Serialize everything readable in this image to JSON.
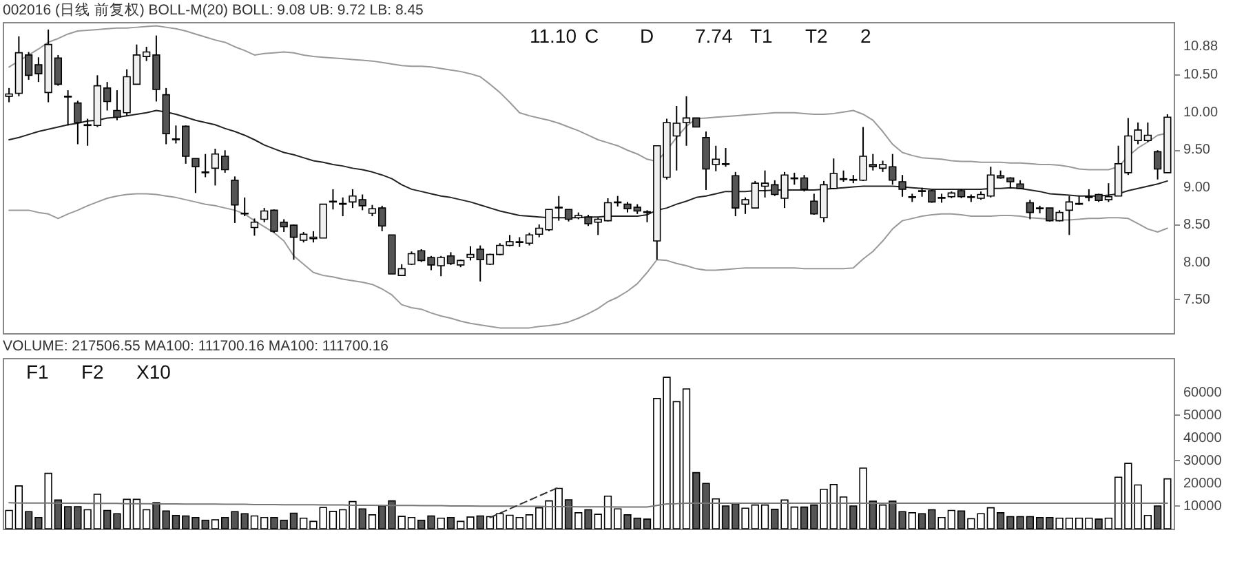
{
  "chart_data": [
    {
      "type": "candlestick",
      "title": "002016 (日线 前复权) BOLL-M(20) BOLL: 9.08 UB: 9.72 LB: 8.45",
      "categories": [
        null,
        null,
        null,
        null,
        null,
        null,
        null,
        null,
        null,
        null,
        null,
        null,
        null,
        null,
        null,
        null,
        null,
        null,
        null,
        null,
        null,
        null,
        null,
        null,
        null,
        null,
        null,
        null,
        null,
        null,
        null,
        null,
        null,
        null,
        null,
        null,
        null,
        null,
        null,
        null,
        null,
        null,
        null,
        null,
        null,
        null,
        null,
        null,
        null,
        null,
        null,
        null,
        null,
        null,
        null,
        null,
        null,
        null,
        null,
        null,
        null,
        null,
        null,
        null,
        null,
        null,
        null,
        null,
        null,
        null,
        null,
        null,
        null,
        null,
        null,
        null,
        null,
        null,
        null,
        null,
        null,
        null,
        null,
        null,
        null,
        null,
        null,
        null,
        null,
        null,
        null,
        null,
        null,
        null,
        null,
        null,
        null,
        null,
        null,
        null,
        null,
        null,
        null,
        null,
        null,
        null,
        null,
        null,
        null,
        null,
        null,
        null,
        null,
        null,
        null,
        null,
        null,
        null,
        null
      ],
      "ylim": [
        7.05,
        11.2
      ],
      "yticks": [
        {
          "value": 7.5,
          "label": "7.50"
        },
        {
          "value": 8,
          "label": "8.00"
        },
        {
          "value": 8.5,
          "label": "8.50"
        },
        {
          "value": 9,
          "label": "9.00"
        },
        {
          "value": 9.5,
          "label": "9.50"
        },
        {
          "value": 10,
          "label": "10.00"
        },
        {
          "value": 10.5,
          "label": "10.50"
        },
        10.88
      ],
      "tick_labels": "y",
      "ohlc": [
        [
          10.21,
          10.32,
          10.13,
          10.24
        ],
        [
          10.25,
          11.01,
          10.21,
          10.79
        ],
        [
          10.76,
          10.8,
          10.43,
          10.49
        ],
        [
          10.63,
          10.73,
          10.4,
          10.51
        ],
        [
          10.26,
          11.1,
          10.13,
          10.9
        ],
        [
          10.72,
          10.76,
          10.35,
          10.37
        ],
        [
          10.21,
          10.29,
          9.82,
          10.2
        ],
        [
          10.12,
          10.15,
          9.57,
          9.86
        ],
        [
          9.82,
          9.91,
          9.55,
          9.83
        ],
        [
          9.82,
          10.49,
          9.8,
          10.35
        ],
        [
          10.32,
          10.4,
          10.02,
          10.14
        ],
        [
          10.02,
          10.29,
          9.89,
          9.93
        ],
        [
          9.99,
          10.57,
          9.95,
          10.47
        ],
        [
          10.37,
          10.9,
          10.37,
          10.76
        ],
        [
          10.74,
          10.87,
          10.68,
          10.8
        ],
        [
          10.76,
          11.02,
          10.14,
          10.3
        ],
        [
          10.23,
          10.32,
          9.57,
          9.71
        ],
        [
          9.64,
          9.82,
          9.58,
          9.63
        ],
        [
          9.81,
          9.82,
          9.31,
          9.41
        ],
        [
          9.38,
          9.38,
          8.92,
          9.27
        ],
        [
          9.2,
          9.44,
          9.13,
          9.19
        ],
        [
          9.25,
          9.51,
          9.02,
          9.44
        ],
        [
          9.41,
          9.49,
          9.19,
          9.23
        ],
        [
          9.09,
          9.14,
          8.52,
          8.76
        ],
        [
          8.65,
          8.86,
          8.61,
          8.64
        ],
        [
          8.46,
          8.58,
          8.35,
          8.53
        ],
        [
          8.57,
          8.72,
          8.53,
          8.68
        ],
        [
          8.69,
          8.7,
          8.39,
          8.41
        ],
        [
          8.53,
          8.57,
          8.4,
          8.47
        ],
        [
          8.49,
          8.5,
          8.03,
          8.33
        ],
        [
          8.29,
          8.4,
          8.26,
          8.37
        ],
        [
          8.31,
          8.41,
          8.26,
          8.33
        ],
        [
          8.32,
          8.77,
          8.32,
          8.77
        ],
        [
          8.8,
          8.97,
          8.7,
          8.81
        ],
        [
          8.77,
          8.86,
          8.61,
          8.78
        ],
        [
          8.8,
          8.97,
          8.72,
          8.88
        ],
        [
          8.83,
          8.9,
          8.69,
          8.75
        ],
        [
          8.65,
          8.76,
          8.61,
          8.71
        ],
        [
          8.72,
          8.75,
          8.41,
          8.48
        ],
        [
          8.36,
          8.36,
          7.84,
          7.84
        ],
        [
          7.82,
          7.97,
          7.82,
          7.91
        ],
        [
          7.97,
          8.14,
          7.96,
          8.11
        ],
        [
          8.15,
          8.17,
          8.0,
          8.02
        ],
        [
          8.06,
          8.08,
          7.89,
          7.96
        ],
        [
          7.95,
          8.08,
          7.81,
          8.06
        ],
        [
          8.08,
          8.13,
          7.96,
          7.98
        ],
        [
          7.96,
          8.03,
          7.93,
          8.02
        ],
        [
          8.06,
          8.21,
          8.02,
          8.1
        ],
        [
          8.17,
          8.22,
          7.74,
          8.03
        ],
        [
          7.97,
          8.11,
          7.96,
          8.1
        ],
        [
          8.1,
          8.25,
          8.09,
          8.22
        ],
        [
          8.22,
          8.36,
          8.21,
          8.27
        ],
        [
          8.26,
          8.33,
          8.2,
          8.27
        ],
        [
          8.25,
          8.39,
          8.22,
          8.36
        ],
        [
          8.37,
          8.5,
          8.33,
          8.45
        ],
        [
          8.43,
          8.7,
          8.41,
          8.7
        ],
        [
          8.72,
          8.88,
          8.55,
          8.73
        ],
        [
          8.7,
          8.7,
          8.54,
          8.57
        ],
        [
          8.59,
          8.66,
          8.57,
          8.62
        ],
        [
          8.6,
          8.63,
          8.48,
          8.51
        ],
        [
          8.53,
          8.59,
          8.36,
          8.57
        ],
        [
          8.55,
          8.85,
          8.54,
          8.79
        ],
        [
          8.79,
          8.88,
          8.74,
          8.8
        ],
        [
          8.77,
          8.8,
          8.66,
          8.71
        ],
        [
          8.73,
          8.77,
          8.64,
          8.68
        ],
        [
          8.67,
          8.69,
          8.53,
          8.66
        ],
        [
          8.28,
          9.55,
          8.03,
          9.55
        ],
        [
          9.13,
          9.91,
          9.1,
          9.86
        ],
        [
          9.68,
          10.08,
          9.22,
          9.85
        ],
        [
          9.86,
          10.21,
          9.55,
          9.92
        ],
        [
          9.92,
          9.92,
          9.8,
          9.8
        ],
        [
          9.66,
          9.74,
          8.96,
          9.24
        ],
        [
          9.3,
          9.55,
          9.21,
          9.37
        ],
        [
          9.31,
          9.52,
          9.27,
          9.3
        ],
        [
          9.15,
          9.2,
          8.61,
          8.72
        ],
        [
          8.77,
          8.86,
          8.64,
          8.83
        ],
        [
          8.72,
          9.08,
          8.72,
          9.05
        ],
        [
          9.01,
          9.22,
          8.86,
          9.05
        ],
        [
          9.03,
          9.09,
          8.88,
          8.9
        ],
        [
          8.85,
          9.2,
          8.72,
          9.16
        ],
        [
          9.11,
          9.19,
          9.03,
          9.12
        ],
        [
          9.12,
          9.16,
          8.94,
          8.97
        ],
        [
          8.81,
          8.91,
          8.63,
          8.64
        ],
        [
          8.59,
          9.08,
          8.53,
          9.03
        ],
        [
          8.98,
          9.38,
          8.97,
          9.18
        ],
        [
          9.1,
          9.22,
          9.07,
          9.11
        ],
        [
          9.1,
          9.16,
          9.05,
          9.09
        ],
        [
          9.09,
          9.8,
          9.08,
          9.41
        ],
        [
          9.3,
          9.44,
          9.22,
          9.27
        ],
        [
          9.25,
          9.35,
          9.2,
          9.3
        ],
        [
          9.27,
          9.44,
          9.03,
          9.09
        ],
        [
          9.07,
          9.16,
          8.87,
          8.97
        ],
        [
          8.86,
          8.91,
          8.8,
          8.87
        ],
        [
          8.95,
          8.99,
          8.87,
          8.94
        ],
        [
          8.95,
          8.96,
          8.79,
          8.8
        ],
        [
          8.85,
          8.91,
          8.79,
          8.86
        ],
        [
          8.87,
          8.94,
          8.85,
          8.92
        ],
        [
          8.95,
          8.97,
          8.85,
          8.87
        ],
        [
          8.86,
          8.9,
          8.8,
          8.87
        ],
        [
          8.85,
          8.94,
          8.83,
          8.9
        ],
        [
          8.88,
          9.27,
          8.86,
          9.16
        ],
        [
          9.15,
          9.22,
          9.11,
          9.12
        ],
        [
          9.12,
          9.13,
          8.98,
          9.07
        ],
        [
          9.04,
          9.09,
          8.97,
          8.98
        ],
        [
          8.79,
          8.83,
          8.57,
          8.66
        ],
        [
          8.72,
          8.75,
          8.65,
          8.71
        ],
        [
          8.72,
          8.72,
          8.54,
          8.55
        ],
        [
          8.55,
          8.69,
          8.54,
          8.66
        ],
        [
          8.69,
          8.88,
          8.36,
          8.8
        ],
        [
          8.77,
          8.88,
          8.76,
          8.78
        ],
        [
          8.86,
          8.97,
          8.81,
          8.87
        ],
        [
          8.9,
          8.91,
          8.8,
          8.82
        ],
        [
          8.83,
          9.05,
          8.8,
          8.87
        ],
        [
          8.88,
          9.55,
          8.88,
          9.31
        ],
        [
          9.19,
          9.92,
          9.16,
          9.68
        ],
        [
          9.62,
          9.86,
          9.57,
          9.76
        ],
        [
          9.62,
          9.86,
          9.6,
          9.69
        ],
        [
          9.47,
          9.49,
          9.1,
          9.24
        ],
        [
          9.19,
          9.97,
          9.19,
          9.93
        ]
      ],
      "series": [
        {
          "type": "line",
          "color": "#999999",
          "values": [
            10.6,
            10.68,
            10.76,
            10.84,
            10.93,
            10.98,
            11.04,
            11.08,
            11.09,
            11.1,
            11.11,
            11.12,
            11.12,
            11.13,
            11.14,
            11.15,
            11.13,
            11.11,
            11.08,
            11.04,
            11.0,
            10.96,
            10.93,
            10.87,
            10.82,
            10.76,
            10.78,
            10.79,
            10.8,
            10.79,
            10.76,
            10.74,
            10.73,
            10.72,
            10.71,
            10.7,
            10.69,
            10.68,
            10.66,
            10.64,
            10.62,
            10.61,
            10.61,
            10.6,
            10.58,
            10.56,
            10.54,
            10.51,
            10.47,
            10.37,
            10.26,
            10.13,
            9.99,
            9.95,
            9.92,
            9.89,
            9.85,
            9.8,
            9.75,
            9.69,
            9.63,
            9.59,
            9.55,
            9.49,
            9.44,
            9.37,
            9.34,
            9.49,
            9.66,
            9.81,
            9.91,
            9.92,
            9.93,
            9.94,
            9.95,
            9.96,
            9.97,
            9.98,
            9.99,
            9.99,
            9.99,
            9.98,
            9.97,
            9.97,
            9.98,
            10.0,
            10.02,
            9.97,
            9.89,
            9.74,
            9.57,
            9.46,
            9.42,
            9.39,
            9.38,
            9.37,
            9.35,
            9.34,
            9.34,
            9.33,
            9.33,
            9.33,
            9.32,
            9.32,
            9.31,
            9.3,
            9.3,
            9.29,
            9.27,
            9.24,
            9.23,
            9.23,
            9.23,
            9.27,
            9.41,
            9.52,
            9.6,
            9.69,
            9.72
          ]
        },
        {
          "type": "line",
          "color": "#222222",
          "values": [
            9.63,
            9.66,
            9.7,
            9.74,
            9.77,
            9.8,
            9.83,
            9.85,
            9.88,
            9.89,
            9.92,
            9.93,
            9.95,
            9.97,
            9.99,
            10.02,
            10.0,
            9.97,
            9.93,
            9.89,
            9.86,
            9.83,
            9.78,
            9.74,
            9.69,
            9.63,
            9.56,
            9.51,
            9.46,
            9.43,
            9.39,
            9.35,
            9.33,
            9.3,
            9.28,
            9.25,
            9.23,
            9.2,
            9.16,
            9.11,
            9.03,
            8.97,
            8.94,
            8.91,
            8.88,
            8.86,
            8.83,
            8.8,
            8.76,
            8.72,
            8.68,
            8.65,
            8.62,
            8.61,
            8.6,
            8.59,
            8.59,
            8.59,
            8.59,
            8.6,
            8.6,
            8.61,
            8.61,
            8.61,
            8.61,
            8.63,
            8.69,
            8.72,
            8.77,
            8.81,
            8.86,
            8.88,
            8.91,
            8.94,
            8.94,
            8.94,
            8.95,
            8.95,
            8.96,
            8.96,
            8.96,
            8.96,
            8.96,
            8.97,
            8.98,
            8.99,
            9.0,
            9.01,
            9.01,
            9.01,
            9.01,
            9.0,
            8.99,
            8.98,
            8.97,
            8.97,
            8.97,
            8.97,
            8.97,
            8.97,
            8.98,
            8.98,
            8.99,
            8.98,
            8.96,
            8.94,
            8.91,
            8.9,
            8.89,
            8.88,
            8.88,
            8.88,
            8.89,
            8.91,
            8.95,
            8.98,
            9.01,
            9.04,
            9.08
          ]
        },
        {
          "type": "line",
          "color": "#999999",
          "values": [
            8.69,
            8.69,
            8.69,
            8.66,
            8.64,
            8.58,
            8.64,
            8.69,
            8.75,
            8.8,
            8.85,
            8.88,
            8.9,
            8.91,
            8.91,
            8.9,
            8.88,
            8.86,
            8.83,
            8.8,
            8.77,
            8.75,
            8.72,
            8.69,
            8.64,
            8.55,
            8.47,
            8.39,
            8.28,
            8.08,
            7.97,
            7.86,
            7.82,
            7.8,
            7.77,
            7.75,
            7.73,
            7.7,
            7.64,
            7.56,
            7.43,
            7.39,
            7.37,
            7.32,
            7.28,
            7.25,
            7.21,
            7.18,
            7.16,
            7.14,
            7.12,
            7.12,
            7.12,
            7.12,
            7.14,
            7.15,
            7.17,
            7.2,
            7.25,
            7.31,
            7.38,
            7.47,
            7.53,
            7.61,
            7.71,
            7.86,
            8.03,
            8.02,
            7.98,
            7.95,
            7.91,
            7.89,
            7.89,
            7.9,
            7.91,
            7.92,
            7.92,
            7.92,
            7.92,
            7.92,
            7.92,
            7.91,
            7.91,
            7.91,
            7.91,
            7.91,
            7.92,
            8.04,
            8.14,
            8.28,
            8.44,
            8.55,
            8.58,
            8.61,
            8.63,
            8.64,
            8.64,
            8.63,
            8.61,
            8.61,
            8.61,
            8.62,
            8.62,
            8.61,
            8.59,
            8.58,
            8.57,
            8.56,
            8.56,
            8.57,
            8.58,
            8.58,
            8.59,
            8.59,
            8.58,
            8.51,
            8.44,
            8.4,
            8.45
          ]
        }
      ],
      "annotations": [
        "11.10",
        "C",
        "D",
        "7.74",
        "T1",
        "T2",
        "2"
      ]
    },
    {
      "type": "bar",
      "title": "VOLUME: 217506.55 MA100: 111700.16 MA100: 111700.16",
      "categories": [
        null,
        null,
        null,
        null,
        null,
        null,
        null,
        null,
        null,
        null,
        null,
        null,
        null,
        null,
        null,
        null,
        null,
        null,
        null,
        null,
        null,
        null,
        null,
        null,
        null,
        null,
        null,
        null,
        null,
        null,
        null,
        null,
        null,
        null,
        null,
        null,
        null,
        null,
        null,
        null,
        null,
        null,
        null,
        null,
        null,
        null,
        null,
        null,
        null,
        null,
        null,
        null,
        null,
        null,
        null,
        null,
        null,
        null,
        null,
        null,
        null,
        null,
        null,
        null,
        null,
        null,
        null,
        null,
        null,
        null,
        null,
        null,
        null,
        null,
        null,
        null,
        null,
        null,
        null,
        null,
        null,
        null,
        null,
        null,
        null,
        null,
        null,
        null,
        null,
        null,
        null,
        null,
        null,
        null,
        null,
        null,
        null,
        null,
        null,
        null,
        null,
        null,
        null,
        null,
        null,
        null,
        null,
        null,
        null,
        null,
        null,
        null,
        null,
        null,
        null,
        null,
        null,
        null,
        null
      ],
      "ylim": [
        0,
        75000
      ],
      "yticks": [
        10000,
        20000,
        30000,
        40000,
        50000,
        60000
      ],
      "tick_labels": "y",
      "series": [
        {
          "type": "bar",
          "values": [
            8000,
            18800,
            7500,
            4900,
            24300,
            12600,
            9700,
            9700,
            8300,
            15100,
            8000,
            6600,
            12900,
            12900,
            8300,
            11400,
            7800,
            5800,
            5600,
            4900,
            3700,
            3900,
            4900,
            7500,
            6600,
            5600,
            4900,
            4900,
            3700,
            6800,
            4600,
            3200,
            9300,
            7600,
            8300,
            11900,
            8700,
            6100,
            10000,
            12200,
            5400,
            4900,
            3700,
            5600,
            4600,
            4900,
            3200,
            5100,
            5600,
            5300,
            6600,
            5900,
            4900,
            6100,
            9200,
            12200,
            17700,
            12700,
            7000,
            8300,
            6300,
            14300,
            8700,
            6100,
            4600,
            4200,
            57200,
            66500,
            55800,
            61400,
            24600,
            19900,
            13100,
            10000,
            11000,
            9000,
            10400,
            10400,
            8500,
            12600,
            9500,
            9500,
            10400,
            17300,
            19400,
            13900,
            10000,
            26600,
            12100,
            10400,
            12100,
            7500,
            7000,
            6600,
            8300,
            4900,
            8000,
            7800,
            4400,
            6600,
            9200,
            7000,
            5300,
            5300,
            5300,
            4900,
            4900,
            4600,
            4600,
            4600,
            4600,
            4200,
            4600,
            22600,
            28700,
            19200,
            5800,
            10000,
            21900
          ],
          "colors": [
            "#ffffff",
            "#ffffff",
            "#555555",
            "#555555",
            "#ffffff",
            "#555555",
            "#555555",
            "#555555",
            "#ffffff",
            "#ffffff",
            "#555555",
            "#555555",
            "#ffffff",
            "#ffffff",
            "#ffffff",
            "#555555",
            "#555555",
            "#555555",
            "#555555",
            "#555555",
            "#555555",
            "#ffffff",
            "#555555",
            "#555555",
            "#555555",
            "#ffffff",
            "#ffffff",
            "#555555",
            "#555555",
            "#555555",
            "#ffffff",
            "#ffffff",
            "#ffffff",
            "#ffffff",
            "#ffffff",
            "#ffffff",
            "#555555",
            "#ffffff",
            "#555555",
            "#555555",
            "#ffffff",
            "#ffffff",
            "#555555",
            "#555555",
            "#ffffff",
            "#555555",
            "#ffffff",
            "#ffffff",
            "#555555",
            "#ffffff",
            "#ffffff",
            "#ffffff",
            "#ffffff",
            "#ffffff",
            "#ffffff",
            "#ffffff",
            "#ffffff",
            "#555555",
            "#ffffff",
            "#555555",
            "#ffffff",
            "#ffffff",
            "#ffffff",
            "#555555",
            "#555555",
            "#555555",
            "#ffffff",
            "#ffffff",
            "#ffffff",
            "#ffffff",
            "#555555",
            "#555555",
            "#ffffff",
            "#555555",
            "#555555",
            "#ffffff",
            "#ffffff",
            "#ffffff",
            "#555555",
            "#ffffff",
            "#ffffff",
            "#555555",
            "#555555",
            "#ffffff",
            "#ffffff",
            "#ffffff",
            "#555555",
            "#ffffff",
            "#555555",
            "#ffffff",
            "#555555",
            "#555555",
            "#ffffff",
            "#555555",
            "#555555",
            "#ffffff",
            "#ffffff",
            "#555555",
            "#ffffff",
            "#ffffff",
            "#ffffff",
            "#555555",
            "#555555",
            "#555555",
            "#555555",
            "#555555",
            "#555555",
            "#ffffff",
            "#ffffff",
            "#ffffff",
            "#ffffff",
            "#555555",
            "#ffffff",
            "#ffffff",
            "#ffffff",
            "#ffffff",
            "#ffffff",
            "#555555",
            "#ffffff"
          ]
        },
        {
          "type": "line",
          "color": "#777777",
          "values": [
            11400,
            11300,
            11300,
            11300,
            11300,
            11200,
            11200,
            11200,
            11100,
            11100,
            11100,
            11100,
            11000,
            11000,
            11000,
            10900,
            10900,
            10900,
            10800,
            10800,
            10800,
            10800,
            10700,
            10700,
            10700,
            10600,
            10600,
            10600,
            10500,
            10500,
            10500,
            10500,
            10400,
            10400,
            10400,
            10300,
            10300,
            10300,
            10200,
            10200,
            10200,
            10200,
            10100,
            10100,
            10100,
            10000,
            10000,
            10000,
            9900,
            9900,
            9900,
            9900,
            9800,
            9800,
            9800,
            9700,
            9700,
            9700,
            9600,
            9600,
            9600,
            9600,
            9500,
            9500,
            9500,
            9500,
            10200,
            10900,
            11000,
            11200,
            11200,
            11200,
            11200,
            11200,
            11200,
            11200,
            11200,
            11200,
            11200,
            11200,
            11200,
            11200,
            11200,
            11200,
            11200,
            11200,
            11200,
            11200,
            11200,
            11200,
            11200,
            11200,
            11200,
            11200,
            11200,
            11200,
            11200,
            11200,
            11200,
            11200,
            11200,
            11200,
            11200,
            11200,
            11200,
            11200,
            11200,
            11200,
            11200,
            11200,
            11200,
            11200,
            11200,
            11200,
            11200,
            11200,
            11200,
            11200,
            11200
          ]
        },
        {
          "type": "line",
          "color": "#333333",
          "line_style": "dashed",
          "values": [
            null,
            null,
            null,
            null,
            null,
            null,
            null,
            null,
            null,
            null,
            null,
            null,
            null,
            null,
            null,
            null,
            null,
            null,
            null,
            null,
            null,
            null,
            null,
            null,
            null,
            null,
            null,
            null,
            null,
            null,
            null,
            null,
            null,
            null,
            null,
            null,
            null,
            null,
            null,
            null,
            null,
            null,
            null,
            null,
            null,
            null,
            null,
            null,
            null,
            4900,
            null,
            null,
            null,
            null,
            null,
            null,
            18200,
            null,
            null,
            null,
            null,
            null,
            null,
            null,
            null,
            null,
            null,
            null,
            null,
            null,
            null,
            null,
            null,
            null,
            null,
            null,
            null,
            null,
            null,
            null,
            null,
            null,
            null,
            null,
            null,
            null,
            null,
            null,
            null,
            null,
            null,
            null,
            null,
            null,
            null,
            null,
            null,
            null,
            null,
            null,
            null,
            null,
            null,
            null,
            null,
            null,
            null,
            null,
            null,
            null,
            null,
            null,
            null,
            null,
            null,
            null,
            null,
            null,
            null
          ]
        }
      ],
      "annotations": [
        "F1",
        "F2",
        "X10"
      ]
    }
  ]
}
